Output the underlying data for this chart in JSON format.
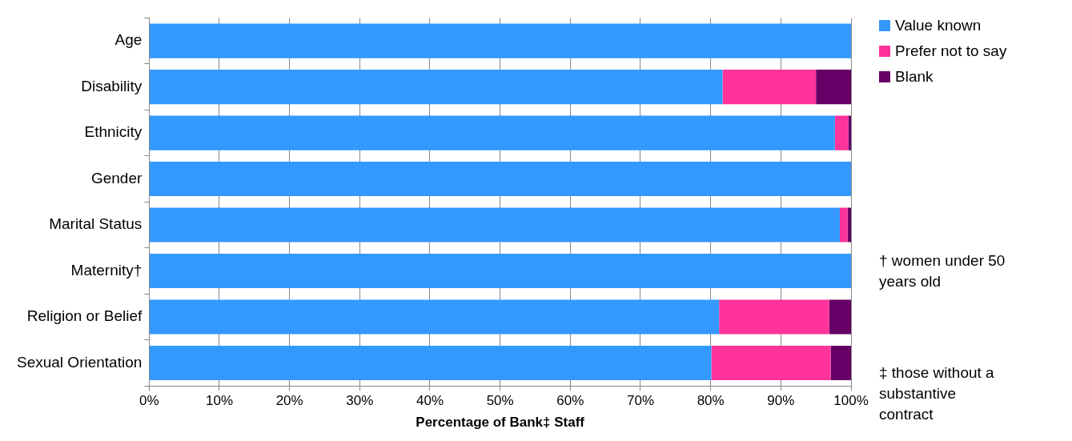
{
  "chart_data": {
    "type": "bar",
    "orientation": "horizontal",
    "stacked": true,
    "xlabel": "Percentage of Bank‡ Staff",
    "categories": [
      "Age",
      "Disability",
      "Ethnicity",
      "Gender",
      "Marital Status",
      "Maternity†",
      "Religion or Belief",
      "Sexual Orientation"
    ],
    "series": [
      {
        "name": "Value known",
        "color": "#3399ff",
        "values": [
          100,
          81.7,
          97.7,
          100,
          98.4,
          100,
          81.2,
          80.1
        ]
      },
      {
        "name": "Prefer not to say",
        "color": "#ff3399",
        "values": [
          0,
          13.3,
          1.9,
          0,
          1.1,
          0,
          15.7,
          17.0
        ]
      },
      {
        "name": "Blank",
        "color": "#660066",
        "values": [
          0,
          5.0,
          0.4,
          0,
          0.5,
          0,
          3.1,
          2.9
        ]
      }
    ],
    "xlim": [
      0,
      100
    ],
    "xticks": [
      {
        "value": 0,
        "label": "0%"
      },
      {
        "value": 10,
        "label": "10%"
      },
      {
        "value": 20,
        "label": "20%"
      },
      {
        "value": 30,
        "label": "30%"
      },
      {
        "value": 40,
        "label": "40%"
      },
      {
        "value": 50,
        "label": "50%"
      },
      {
        "value": 60,
        "label": "60%"
      },
      {
        "value": 70,
        "label": "70%"
      },
      {
        "value": 80,
        "label": "80%"
      },
      {
        "value": 90,
        "label": "90%"
      },
      {
        "value": 100,
        "label": "100%"
      }
    ],
    "grid": "x",
    "legend": "top right",
    "annotations": [
      "† women under 50 years old",
      "‡ those without a substantive contract"
    ]
  }
}
